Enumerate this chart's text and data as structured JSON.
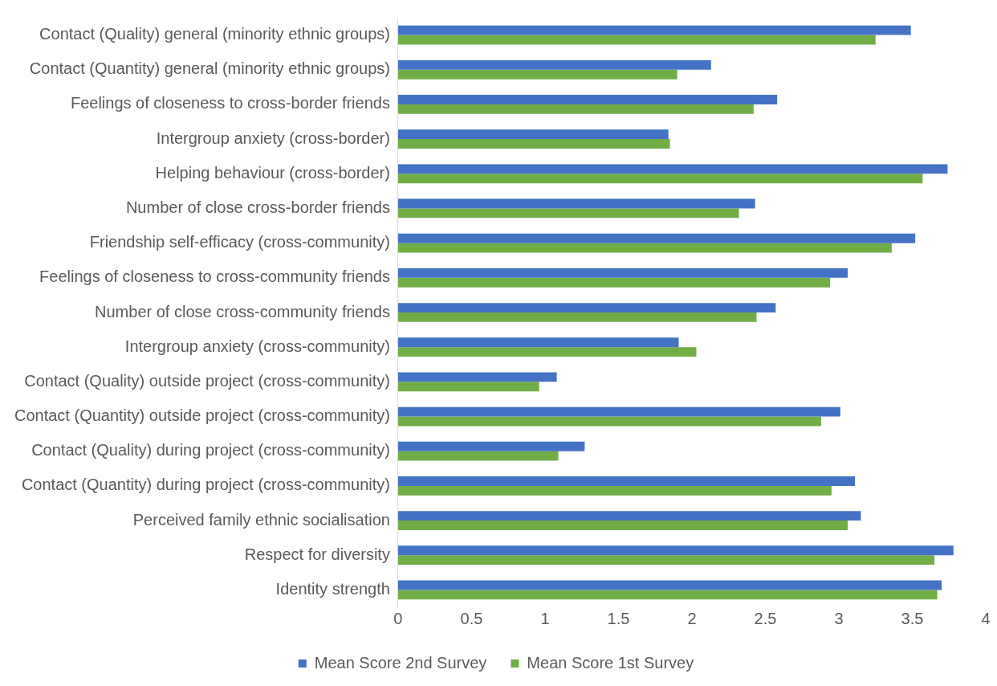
{
  "chart_data": {
    "type": "bar",
    "orientation": "horizontal",
    "legend": "bottom",
    "categories": [
      "Contact (Quality) general (minority ethnic groups)",
      "Contact (Quantity) general (minority ethnic groups)",
      "Feelings of closeness to cross-border friends",
      "Intergroup anxiety (cross-border)",
      "Helping behaviour (cross-border)",
      "Number of close cross-border friends",
      "Friendship self-efficacy (cross-community)",
      "Feelings of closeness to cross-community friends",
      "Number of close cross-community friends",
      "Intergroup anxiety (cross-community)",
      "Contact (Quality) outside project (cross-community)",
      "Contact (Quantity) outside project (cross-community)",
      "Contact (Quality) during project (cross-community)",
      "Contact (Quantity) during project (cross-community)",
      "Perceived family ethnic socialisation",
      "Respect for diversity",
      "Identity strength"
    ],
    "series": [
      {
        "name": "Mean Score 2nd Survey",
        "color": "#4472c4",
        "values": [
          3.49,
          2.13,
          2.58,
          1.84,
          3.74,
          2.43,
          3.52,
          3.06,
          2.57,
          1.91,
          1.08,
          3.01,
          1.27,
          3.11,
          3.15,
          3.78,
          3.7
        ]
      },
      {
        "name": "Mean Score 1st Survey",
        "color": "#70ad47",
        "values": [
          3.25,
          1.9,
          2.42,
          1.85,
          3.57,
          2.32,
          3.36,
          2.94,
          2.44,
          2.03,
          0.96,
          2.88,
          1.09,
          2.95,
          3.06,
          3.65,
          3.67
        ]
      }
    ],
    "xlim": [
      0,
      4
    ],
    "xticks": [
      0,
      0.5,
      1,
      1.5,
      2,
      2.5,
      3,
      3.5,
      4
    ]
  }
}
